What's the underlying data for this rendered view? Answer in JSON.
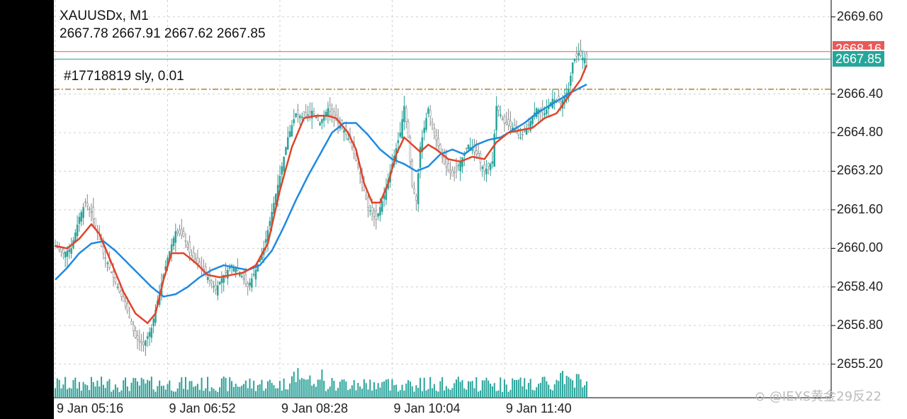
{
  "symbol_line": "XAUUSDx, M1",
  "ohlc_line": "2667.78 2667.91 2667.62 2667.85",
  "order_line": "#17718819 sly, 0.01",
  "current_price": "2667.85",
  "ask_price_partial": "2668.16",
  "watermark": "@IEXS黄金29反22",
  "colors": {
    "background": "#ffffff",
    "frame": "#000000",
    "bull_candle": "#2aa39a",
    "bear_candle": "#c0c0c0",
    "ma_fast": "#e0442a",
    "ma_slow": "#1f8ae0",
    "bid_line": "#26a69a",
    "ask_line": "#e85a5a",
    "order_line": "#b87f2c",
    "volume": "#2aa39a"
  },
  "chart_data": {
    "type": "candlestick",
    "symbol": "XAUUSDx",
    "timeframe": "M1",
    "y_ticks": [
      "2669.60",
      "2666.40",
      "2664.80",
      "2663.20",
      "2661.60",
      "2660.00",
      "2658.40",
      "2656.80",
      "2655.20"
    ],
    "ylim": [
      2654.6,
      2670.3
    ],
    "x_ticks": [
      "9 Jan 05:16",
      "9 Jan 06:52",
      "9 Jan 08:28",
      "9 Jan 10:04",
      "9 Jan 11:40"
    ],
    "bid_price": 2667.85,
    "ask_price": 2668.16,
    "order_price": 2666.6,
    "price_path": [
      [
        0,
        2660.1
      ],
      [
        4,
        2659.8
      ],
      [
        8,
        2660.0
      ],
      [
        12,
        2661.3
      ],
      [
        15,
        2661.9
      ],
      [
        18,
        2661.5
      ],
      [
        24,
        2659.8
      ],
      [
        30,
        2658.6
      ],
      [
        36,
        2657.4
      ],
      [
        40,
        2656.3
      ],
      [
        44,
        2656.0
      ],
      [
        48,
        2656.7
      ],
      [
        52,
        2658.2
      ],
      [
        56,
        2659.6
      ],
      [
        60,
        2660.7
      ],
      [
        64,
        2660.5
      ],
      [
        68,
        2659.6
      ],
      [
        72,
        2659.3
      ],
      [
        76,
        2658.8
      ],
      [
        80,
        2658.3
      ],
      [
        84,
        2658.9
      ],
      [
        88,
        2659.3
      ],
      [
        92,
        2659.0
      ],
      [
        96,
        2658.4
      ],
      [
        100,
        2659.1
      ],
      [
        104,
        2660.0
      ],
      [
        108,
        2661.5
      ],
      [
        112,
        2663.0
      ],
      [
        116,
        2664.6
      ],
      [
        120,
        2665.6
      ],
      [
        124,
        2665.4
      ],
      [
        128,
        2665.7
      ],
      [
        132,
        2665.2
      ],
      [
        136,
        2665.8
      ],
      [
        140,
        2665.3
      ],
      [
        144,
        2664.9
      ],
      [
        148,
        2664.2
      ],
      [
        152,
        2663.1
      ],
      [
        156,
        2661.7
      ],
      [
        160,
        2661.2
      ],
      [
        164,
        2662.2
      ],
      [
        168,
        2663.5
      ],
      [
        172,
        2664.8
      ],
      [
        174,
        2665.9
      ],
      [
        176,
        2664.6
      ],
      [
        178,
        2662.6
      ],
      [
        180,
        2662.0
      ],
      [
        182,
        2664.2
      ],
      [
        186,
        2665.8
      ],
      [
        190,
        2664.5
      ],
      [
        194,
        2663.5
      ],
      [
        198,
        2663.0
      ],
      [
        202,
        2663.6
      ],
      [
        206,
        2664.3
      ],
      [
        210,
        2663.9
      ],
      [
        214,
        2663.2
      ],
      [
        218,
        2663.6
      ],
      [
        220,
        2665.9
      ],
      [
        224,
        2665.2
      ],
      [
        228,
        2665.0
      ],
      [
        232,
        2664.6
      ],
      [
        236,
        2665.1
      ],
      [
        240,
        2665.8
      ],
      [
        244,
        2665.6
      ],
      [
        248,
        2666.2
      ],
      [
        252,
        2666.0
      ],
      [
        256,
        2666.6
      ],
      [
        258,
        2667.7
      ],
      [
        261,
        2668.1
      ],
      [
        263,
        2667.9
      ],
      [
        265,
        2667.85
      ]
    ],
    "ma_fast": [
      [
        0,
        2660.1
      ],
      [
        6,
        2660.0
      ],
      [
        12,
        2660.4
      ],
      [
        18,
        2661.0
      ],
      [
        22,
        2660.6
      ],
      [
        28,
        2659.4
      ],
      [
        34,
        2658.2
      ],
      [
        40,
        2657.3
      ],
      [
        46,
        2656.9
      ],
      [
        50,
        2657.3
      ],
      [
        54,
        2658.7
      ],
      [
        58,
        2659.8
      ],
      [
        64,
        2659.8
      ],
      [
        70,
        2659.4
      ],
      [
        76,
        2658.9
      ],
      [
        82,
        2658.8
      ],
      [
        88,
        2658.9
      ],
      [
        94,
        2659.0
      ],
      [
        100,
        2659.3
      ],
      [
        106,
        2660.2
      ],
      [
        112,
        2662.4
      ],
      [
        118,
        2664.2
      ],
      [
        124,
        2665.4
      ],
      [
        130,
        2665.5
      ],
      [
        136,
        2665.5
      ],
      [
        140,
        2665.4
      ],
      [
        146,
        2664.8
      ],
      [
        150,
        2664.1
      ],
      [
        154,
        2662.7
      ],
      [
        158,
        2661.9
      ],
      [
        162,
        2661.9
      ],
      [
        166,
        2662.7
      ],
      [
        170,
        2663.9
      ],
      [
        174,
        2664.6
      ],
      [
        178,
        2664.3
      ],
      [
        182,
        2664.0
      ],
      [
        186,
        2664.3
      ],
      [
        190,
        2664.1
      ],
      [
        196,
        2663.7
      ],
      [
        202,
        2663.6
      ],
      [
        208,
        2663.8
      ],
      [
        214,
        2663.7
      ],
      [
        220,
        2664.4
      ],
      [
        226,
        2664.8
      ],
      [
        232,
        2664.9
      ],
      [
        238,
        2665.0
      ],
      [
        244,
        2665.4
      ],
      [
        250,
        2665.6
      ],
      [
        256,
        2666.3
      ],
      [
        262,
        2667.0
      ],
      [
        265,
        2667.6
      ]
    ],
    "ma_slow": [
      [
        0,
        2658.7
      ],
      [
        6,
        2659.2
      ],
      [
        12,
        2659.8
      ],
      [
        18,
        2660.2
      ],
      [
        24,
        2660.3
      ],
      [
        30,
        2659.9
      ],
      [
        36,
        2659.4
      ],
      [
        42,
        2658.9
      ],
      [
        48,
        2658.4
      ],
      [
        54,
        2658.0
      ],
      [
        60,
        2658.1
      ],
      [
        66,
        2658.4
      ],
      [
        72,
        2658.8
      ],
      [
        78,
        2659.1
      ],
      [
        84,
        2659.3
      ],
      [
        90,
        2659.2
      ],
      [
        96,
        2659.1
      ],
      [
        102,
        2659.3
      ],
      [
        108,
        2659.9
      ],
      [
        114,
        2660.9
      ],
      [
        120,
        2662.0
      ],
      [
        126,
        2663.0
      ],
      [
        132,
        2663.9
      ],
      [
        138,
        2664.8
      ],
      [
        144,
        2665.2
      ],
      [
        150,
        2665.2
      ],
      [
        156,
        2664.7
      ],
      [
        162,
        2664.1
      ],
      [
        168,
        2663.7
      ],
      [
        174,
        2663.5
      ],
      [
        180,
        2663.2
      ],
      [
        186,
        2663.4
      ],
      [
        192,
        2663.9
      ],
      [
        198,
        2664.1
      ],
      [
        204,
        2663.9
      ],
      [
        210,
        2664.3
      ],
      [
        216,
        2664.5
      ],
      [
        222,
        2664.6
      ],
      [
        228,
        2664.9
      ],
      [
        234,
        2665.2
      ],
      [
        240,
        2665.6
      ],
      [
        246,
        2665.9
      ],
      [
        252,
        2666.2
      ],
      [
        258,
        2666.5
      ],
      [
        265,
        2666.8
      ]
    ],
    "volume_level": "low-to-moderate, spikes near 08:28 and 11:40"
  }
}
